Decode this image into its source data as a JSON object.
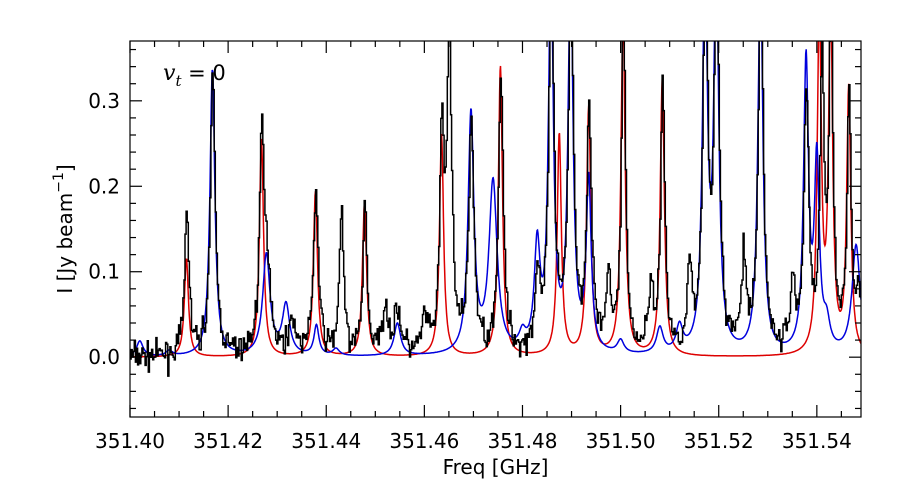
{
  "chart_data": {
    "type": "line",
    "xlabel": "Freq [GHz]",
    "ylabel_main": "I [Jy beam",
    "ylabel_sup": "−1",
    "ylabel_close": "]",
    "annotation": {
      "var": "v",
      "sub": "t",
      "text": " = 0"
    },
    "xlim": [
      351.4,
      351.549
    ],
    "ylim": [
      -0.07,
      0.37
    ],
    "xticks": [
      351.4,
      351.42,
      351.44,
      351.46,
      351.48,
      351.5,
      351.52,
      351.54
    ],
    "xtick_labels": [
      "351.40",
      "351.42",
      "351.44",
      "351.46",
      "351.48",
      "351.50",
      "351.52",
      "351.54"
    ],
    "yticks": [
      0.0,
      0.1,
      0.2,
      0.3
    ],
    "ytick_labels": [
      "0.0",
      "0.1",
      "0.2",
      "0.3"
    ],
    "grid": false,
    "colors": {
      "observed": "#000000",
      "model_a": "#dd0000",
      "model_b": "#0000dd"
    },
    "series": [
      {
        "key": "model_a",
        "baseline": 0.0,
        "peaks": [
          {
            "x": 351.4115,
            "h": 0.115,
            "w": 0.0005
          },
          {
            "x": 351.4268,
            "h": 0.255,
            "w": 0.0005
          },
          {
            "x": 351.4378,
            "h": 0.193,
            "w": 0.0005
          },
          {
            "x": 351.4478,
            "h": 0.18,
            "w": 0.0005
          },
          {
            "x": 351.4635,
            "h": 0.26,
            "w": 0.0005
          },
          {
            "x": 351.4755,
            "h": 0.34,
            "w": 0.0005
          },
          {
            "x": 351.4875,
            "h": 0.26,
            "w": 0.0005
          },
          {
            "x": 351.4935,
            "h": 0.29,
            "w": 0.0005
          },
          {
            "x": 351.5005,
            "h": 0.4,
            "w": 0.0005
          },
          {
            "x": 351.5085,
            "h": 0.325,
            "w": 0.0005
          },
          {
            "x": 351.5405,
            "h": 0.4,
            "w": 0.0005
          },
          {
            "x": 351.5428,
            "h": 0.4,
            "w": 0.0005
          },
          {
            "x": 351.5465,
            "h": 0.31,
            "w": 0.0005
          }
        ]
      },
      {
        "key": "model_b",
        "baseline": 0.0,
        "peaks": [
          {
            "x": 351.402,
            "h": 0.018,
            "w": 0.0008
          },
          {
            "x": 351.408,
            "h": 0.006,
            "w": 0.0008
          },
          {
            "x": 351.4168,
            "h": 0.336,
            "w": 0.0006
          },
          {
            "x": 351.4278,
            "h": 0.118,
            "w": 0.0009
          },
          {
            "x": 351.4318,
            "h": 0.058,
            "w": 0.0009
          },
          {
            "x": 351.438,
            "h": 0.035,
            "w": 0.0006
          },
          {
            "x": 351.442,
            "h": 0.008,
            "w": 0.0008
          },
          {
            "x": 351.4545,
            "h": 0.038,
            "w": 0.0008
          },
          {
            "x": 351.4695,
            "h": 0.28,
            "w": 0.0007
          },
          {
            "x": 351.474,
            "h": 0.2,
            "w": 0.001
          },
          {
            "x": 351.48,
            "h": 0.018,
            "w": 0.0008
          },
          {
            "x": 351.483,
            "h": 0.12,
            "w": 0.0007
          },
          {
            "x": 351.4858,
            "h": 0.45,
            "w": 0.0006
          },
          {
            "x": 351.4898,
            "h": 0.45,
            "w": 0.0006
          },
          {
            "x": 351.4935,
            "h": 0.2,
            "w": 0.0006
          },
          {
            "x": 351.5,
            "h": 0.015,
            "w": 0.0008
          },
          {
            "x": 351.508,
            "h": 0.03,
            "w": 0.0008
          },
          {
            "x": 351.512,
            "h": 0.03,
            "w": 0.0008
          },
          {
            "x": 351.5172,
            "h": 0.45,
            "w": 0.0006
          },
          {
            "x": 351.5195,
            "h": 0.45,
            "w": 0.0006
          },
          {
            "x": 351.5285,
            "h": 0.45,
            "w": 0.0006
          },
          {
            "x": 351.5378,
            "h": 0.34,
            "w": 0.0006
          },
          {
            "x": 351.54,
            "h": 0.22,
            "w": 0.0006
          },
          {
            "x": 351.542,
            "h": 0.03,
            "w": 0.0008
          },
          {
            "x": 351.548,
            "h": 0.128,
            "w": 0.001
          }
        ]
      },
      {
        "key": "observed",
        "noise": 0.014,
        "step": 0.00022,
        "peaks": [
          {
            "x": 351.4115,
            "h": 0.175,
            "w": 0.0005
          },
          {
            "x": 351.4168,
            "h": 0.32,
            "w": 0.0006
          },
          {
            "x": 351.4268,
            "h": 0.245,
            "w": 0.0006
          },
          {
            "x": 351.428,
            "h": 0.08,
            "w": 0.0008
          },
          {
            "x": 351.433,
            "h": 0.04,
            "w": 0.0008
          },
          {
            "x": 351.4378,
            "h": 0.19,
            "w": 0.0006
          },
          {
            "x": 351.443,
            "h": 0.17,
            "w": 0.0005
          },
          {
            "x": 351.4478,
            "h": 0.175,
            "w": 0.0005
          },
          {
            "x": 351.452,
            "h": 0.06,
            "w": 0.0006
          },
          {
            "x": 351.4545,
            "h": 0.05,
            "w": 0.0008
          },
          {
            "x": 351.46,
            "h": 0.04,
            "w": 0.0006
          },
          {
            "x": 351.4635,
            "h": 0.24,
            "w": 0.0005
          },
          {
            "x": 351.465,
            "h": 0.36,
            "w": 0.0006
          },
          {
            "x": 351.4695,
            "h": 0.27,
            "w": 0.0006
          },
          {
            "x": 351.4755,
            "h": 0.32,
            "w": 0.0006
          },
          {
            "x": 351.483,
            "h": 0.09,
            "w": 0.0006
          },
          {
            "x": 351.4858,
            "h": 0.45,
            "w": 0.0006
          },
          {
            "x": 351.4898,
            "h": 0.45,
            "w": 0.0006
          },
          {
            "x": 351.4935,
            "h": 0.28,
            "w": 0.0006
          },
          {
            "x": 351.4975,
            "h": 0.08,
            "w": 0.0006
          },
          {
            "x": 351.5005,
            "h": 0.4,
            "w": 0.0005
          },
          {
            "x": 351.506,
            "h": 0.07,
            "w": 0.0006
          },
          {
            "x": 351.5085,
            "h": 0.32,
            "w": 0.0005
          },
          {
            "x": 351.514,
            "h": 0.09,
            "w": 0.0006
          },
          {
            "x": 351.5172,
            "h": 0.45,
            "w": 0.0006
          },
          {
            "x": 351.5195,
            "h": 0.45,
            "w": 0.0006
          },
          {
            "x": 351.525,
            "h": 0.1,
            "w": 0.0006
          },
          {
            "x": 351.5285,
            "h": 0.45,
            "w": 0.0006
          },
          {
            "x": 351.535,
            "h": 0.08,
            "w": 0.0006
          },
          {
            "x": 351.5378,
            "h": 0.3,
            "w": 0.0006
          },
          {
            "x": 351.541,
            "h": 0.33,
            "w": 0.0005
          },
          {
            "x": 351.5428,
            "h": 0.4,
            "w": 0.0005
          },
          {
            "x": 351.5465,
            "h": 0.3,
            "w": 0.0005
          },
          {
            "x": 351.5485,
            "h": 0.07,
            "w": 0.0006
          }
        ]
      }
    ]
  }
}
